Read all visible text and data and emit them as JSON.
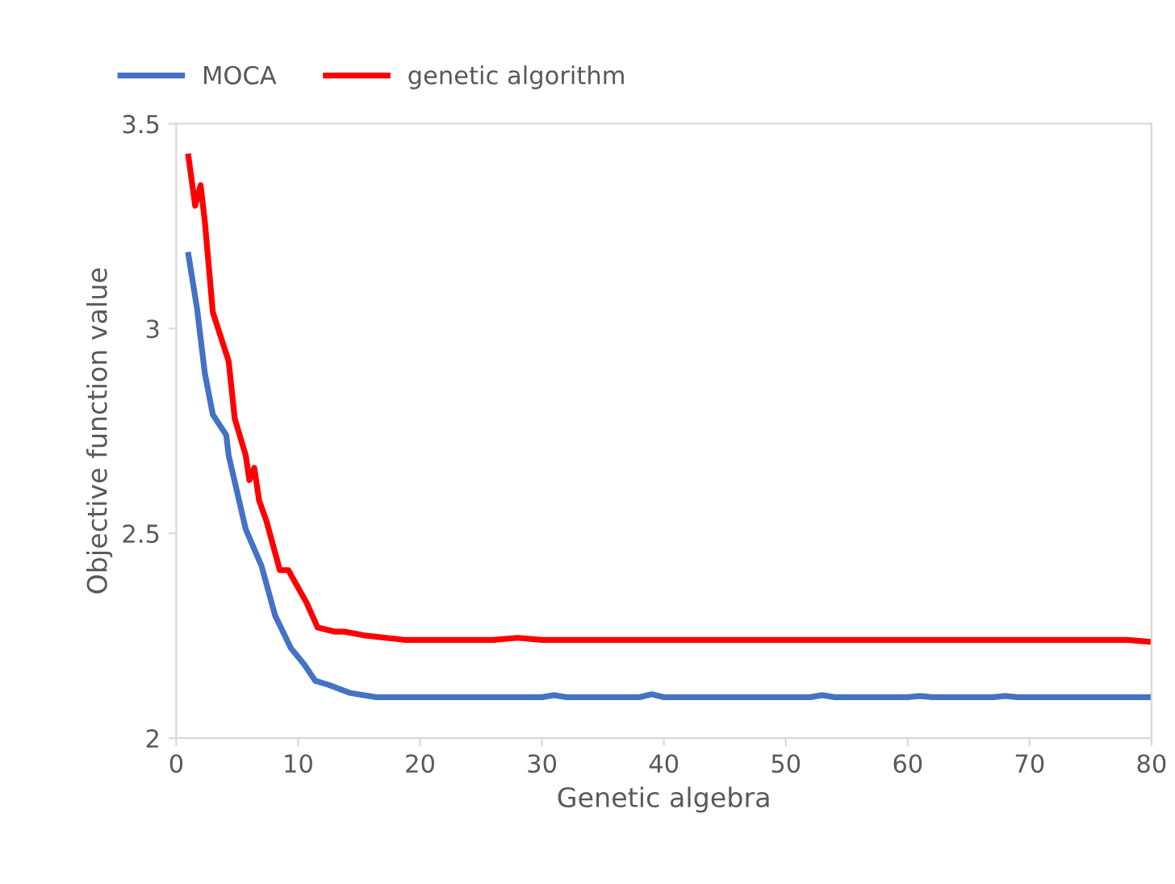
{
  "chart_data": {
    "type": "line",
    "xlabel": "Genetic algebra",
    "ylabel": "Objective function value",
    "xlim": [
      0,
      80
    ],
    "xticks": [
      0,
      10,
      20,
      30,
      40,
      50,
      60,
      70,
      80
    ],
    "ylim": [
      2,
      3.5
    ],
    "yticks": [
      2,
      2.5,
      3,
      3.5
    ],
    "grid": false,
    "legend": "top left",
    "line_style": "solid",
    "marker": "none",
    "series": [
      {
        "name": "MOCA",
        "color": "#4472c4",
        "x": [
          1,
          1.7,
          2.35,
          3.0,
          4.1,
          4.3,
          5.7,
          7.0,
          8.1,
          9.4,
          10.5,
          11.4,
          12.5,
          14.3,
          16.4,
          20,
          30,
          31,
          32,
          38,
          39,
          40,
          52,
          53,
          54,
          60,
          61,
          62,
          67,
          68,
          69,
          80
        ],
        "values": [
          3.18,
          3.05,
          2.89,
          2.79,
          2.74,
          2.69,
          2.51,
          2.42,
          2.3,
          2.22,
          2.18,
          2.14,
          2.13,
          2.11,
          2.1,
          2.1,
          2.1,
          2.105,
          2.1,
          2.1,
          2.107,
          2.1,
          2.1,
          2.105,
          2.1,
          2.1,
          2.103,
          2.1,
          2.1,
          2.103,
          2.1,
          2.1
        ]
      },
      {
        "name": "genetic algorithm",
        "color": "#ff0000",
        "x": [
          1,
          1.55,
          2.0,
          2.35,
          3.0,
          4.3,
          4.8,
          5.7,
          6.0,
          6.4,
          6.8,
          7.4,
          8.5,
          9.2,
          10.7,
          11.6,
          13,
          13.8,
          15.6,
          18.7,
          21.7,
          26,
          28,
          30,
          33,
          40,
          50,
          60,
          70,
          78,
          80
        ],
        "values": [
          3.42,
          3.3,
          3.35,
          3.26,
          3.04,
          2.92,
          2.78,
          2.69,
          2.63,
          2.66,
          2.58,
          2.53,
          2.41,
          2.41,
          2.33,
          2.27,
          2.26,
          2.26,
          2.25,
          2.24,
          2.24,
          2.24,
          2.245,
          2.24,
          2.24,
          2.24,
          2.24,
          2.24,
          2.24,
          2.24,
          2.235
        ]
      }
    ]
  }
}
